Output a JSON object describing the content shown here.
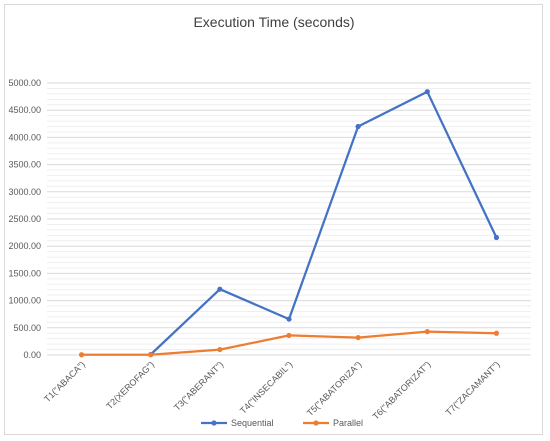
{
  "chart_data": {
    "type": "line",
    "title": "Execution Time (seconds)",
    "xlabel": "",
    "ylabel": "",
    "categories": [
      "T1(\"ABACA\")",
      "T2(XEROFAG\")",
      "T3(\"ABERANT\")",
      "T4(\"INSECABIL\")",
      "T5(\"ABATORIZA\")",
      "T6(\"ABATORIZAT\")",
      "T7(\"ZACAMANT\")"
    ],
    "series": [
      {
        "name": "Sequential",
        "color": "#4472c4",
        "values": [
          null,
          10,
          1210,
          660,
          4200,
          4840,
          2160
        ]
      },
      {
        "name": "Parallel",
        "color": "#ed7d31",
        "values": [
          5,
          5,
          100,
          360,
          320,
          430,
          400
        ]
      }
    ],
    "ylim": [
      0,
      5000
    ],
    "yticks": [
      "0.00",
      "500.00",
      "1000.00",
      "1500.00",
      "2000.00",
      "2500.00",
      "3000.00",
      "3500.00",
      "4000.00",
      "4500.00",
      "5000.00"
    ],
    "grid": true,
    "legend_position": "bottom"
  }
}
